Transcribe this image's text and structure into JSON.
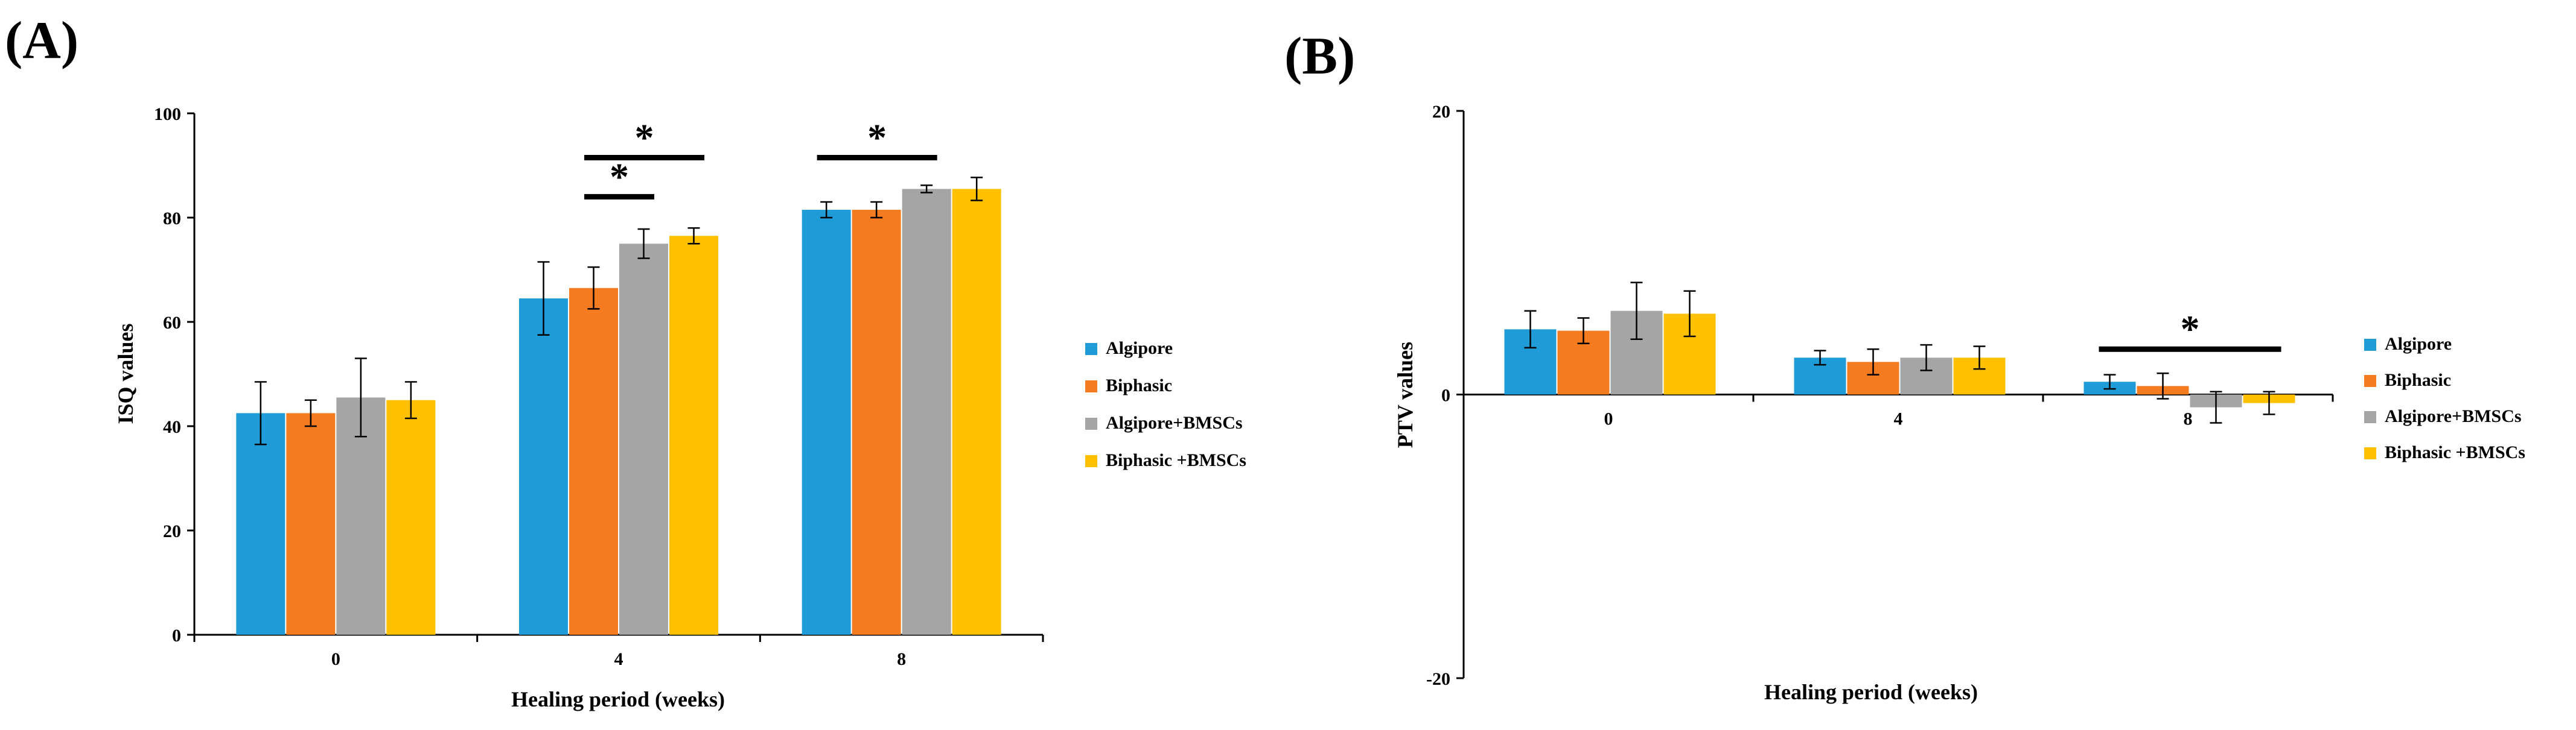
{
  "colors": {
    "Algipore": "#1f9bd7",
    "Biphasic": "#f47b20",
    "Algipore+BMSCs": "#a5a5a5",
    "Biphasic +BMSCs": "#ffc000",
    "axis": "#000000",
    "errorbar": "#000000"
  },
  "chart_data": [
    {
      "type": "bar",
      "panel_label": "(A)",
      "title": "",
      "xlabel": "Healing period (weeks)",
      "ylabel": "ISQ values",
      "categories": [
        "0",
        "4",
        "8"
      ],
      "ylim": [
        0,
        100
      ],
      "yticks": [
        0,
        20,
        40,
        60,
        80,
        100
      ],
      "legend_position": "right",
      "series": [
        {
          "name": "Algipore",
          "values": [
            42.5,
            64.5,
            81.5
          ],
          "errors": [
            6,
            7,
            1.5
          ]
        },
        {
          "name": "Biphasic",
          "values": [
            42.5,
            66.5,
            81.5
          ],
          "errors": [
            2.5,
            4,
            1.5
          ]
        },
        {
          "name": "Algipore+BMSCs",
          "values": [
            45.5,
            75,
            85.5
          ],
          "errors": [
            7.5,
            2.8,
            0.7
          ]
        },
        {
          "name": "Biphasic +BMSCs",
          "values": [
            45,
            76.5,
            85.5
          ],
          "errors": [
            3.5,
            1.5,
            2.2
          ]
        }
      ],
      "significance": [
        {
          "category_index": 1,
          "from_series": 1,
          "to_series": 3,
          "value": 91.5,
          "label": "*"
        },
        {
          "category_index": 1,
          "from_series": 1,
          "to_series": 2,
          "value": 84,
          "label": "*"
        },
        {
          "category_index": 2,
          "from_series": 0,
          "to_series": 2,
          "value": 91.5,
          "label": "*"
        }
      ]
    },
    {
      "type": "bar",
      "panel_label": "(B)",
      "title": "",
      "xlabel": "Healing period (weeks)",
      "ylabel": "PTV values",
      "categories": [
        "0",
        "4",
        "8"
      ],
      "ylim": [
        -20,
        20
      ],
      "yticks": [
        -20,
        0,
        20
      ],
      "legend_position": "right",
      "series": [
        {
          "name": "Algipore",
          "values": [
            4.6,
            2.6,
            0.9
          ],
          "errors": [
            1.3,
            0.5,
            0.5
          ]
        },
        {
          "name": "Biphasic",
          "values": [
            4.5,
            2.3,
            0.6
          ],
          "errors": [
            0.9,
            0.9,
            0.9
          ]
        },
        {
          "name": "Algipore+BMSCs",
          "values": [
            5.9,
            2.6,
            -0.9
          ],
          "errors": [
            2,
            0.9,
            1.1
          ]
        },
        {
          "name": "Biphasic +BMSCs",
          "values": [
            5.7,
            2.6,
            -0.6
          ],
          "errors": [
            1.6,
            0.8,
            0.8
          ]
        }
      ],
      "significance": [
        {
          "category_index": 2,
          "from_series": 0,
          "to_series": 3,
          "value": 3.2,
          "label": "*"
        }
      ]
    }
  ]
}
